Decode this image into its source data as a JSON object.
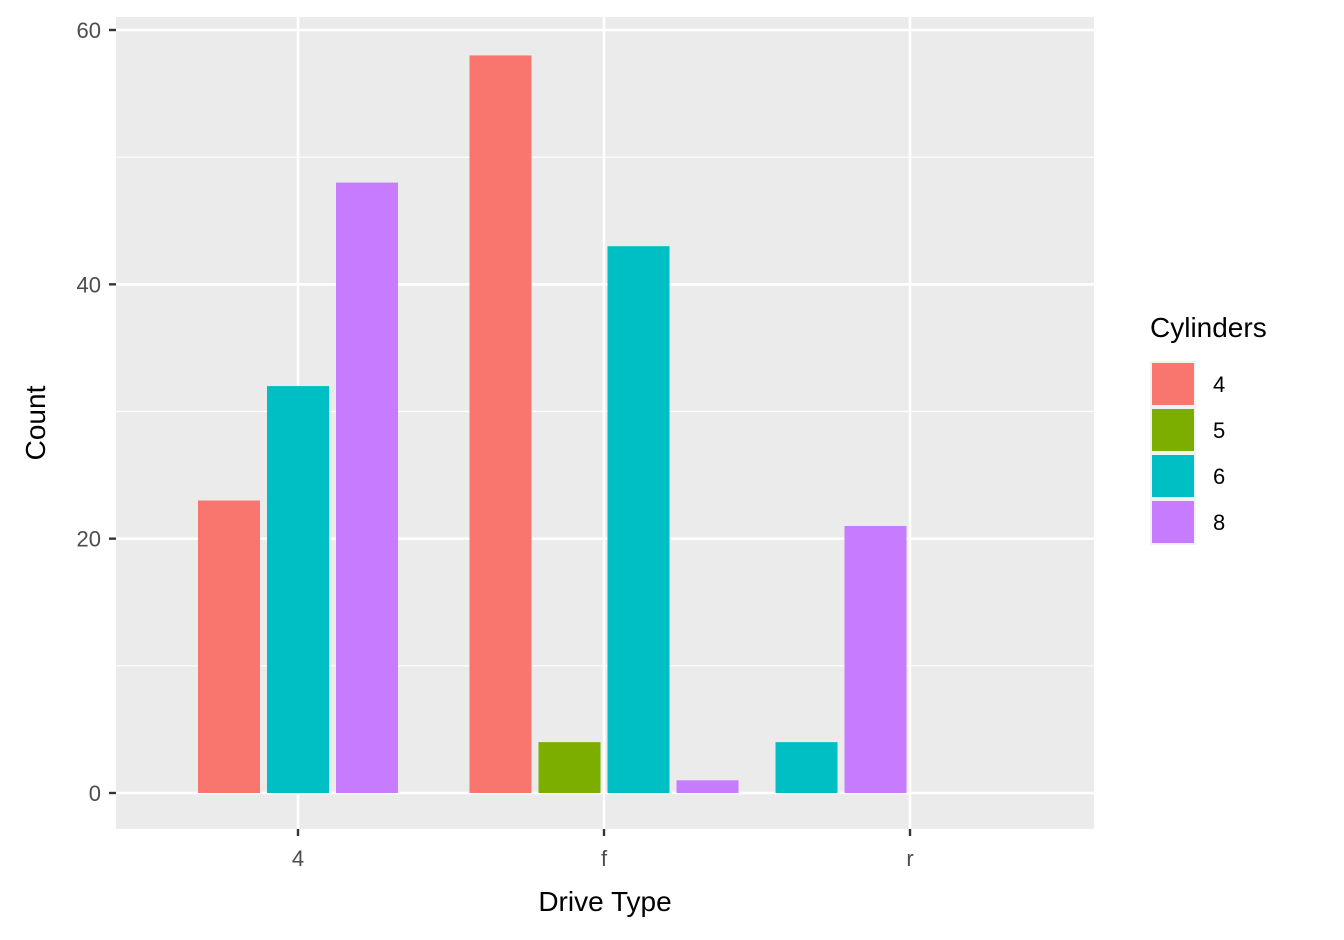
{
  "chart_data": {
    "type": "bar",
    "subtype": "grouped (dodged)",
    "title": "",
    "xlabel": "Drive Type",
    "ylabel": "Count",
    "categories": [
      "4",
      "f",
      "r"
    ],
    "ylim": [
      -3,
      62
    ],
    "yticks": [
      0,
      20,
      40,
      60
    ],
    "grid": true,
    "legend": {
      "title": "Cylinders",
      "position": "right"
    },
    "series": [
      {
        "name": "4",
        "color": "#F8766D",
        "values": [
          23,
          58,
          null
        ]
      },
      {
        "name": "5",
        "color": "#7CAE00",
        "values": [
          null,
          4,
          null
        ]
      },
      {
        "name": "6",
        "color": "#00BFC4",
        "values": [
          32,
          43,
          4
        ]
      },
      {
        "name": "8",
        "color": "#C77CFF",
        "values": [
          48,
          1,
          21
        ]
      }
    ],
    "bars": [
      {
        "category": "4",
        "cyl": "4",
        "value": 23,
        "slot": 0,
        "nslots": 3
      },
      {
        "category": "4",
        "cyl": "6",
        "value": 32,
        "slot": 1,
        "nslots": 3
      },
      {
        "category": "4",
        "cyl": "8",
        "value": 48,
        "slot": 2,
        "nslots": 3
      },
      {
        "category": "f",
        "cyl": "4",
        "value": 58,
        "slot": 0,
        "nslots": 4
      },
      {
        "category": "f",
        "cyl": "5",
        "value": 4,
        "slot": 1,
        "nslots": 4
      },
      {
        "category": "f",
        "cyl": "6",
        "value": 43,
        "slot": 2,
        "nslots": 4
      },
      {
        "category": "f",
        "cyl": "8",
        "value": 1,
        "slot": 3,
        "nslots": 4
      },
      {
        "category": "r",
        "cyl": "6",
        "value": 4,
        "slot": 0,
        "nslots": 4
      },
      {
        "category": "r",
        "cyl": "8",
        "value": 21,
        "slot": 1,
        "nslots": 4
      }
    ]
  },
  "style": {
    "panel_bg": "#EBEBEB",
    "grid_color": "#FFFFFF",
    "tick_color": "#333333"
  }
}
